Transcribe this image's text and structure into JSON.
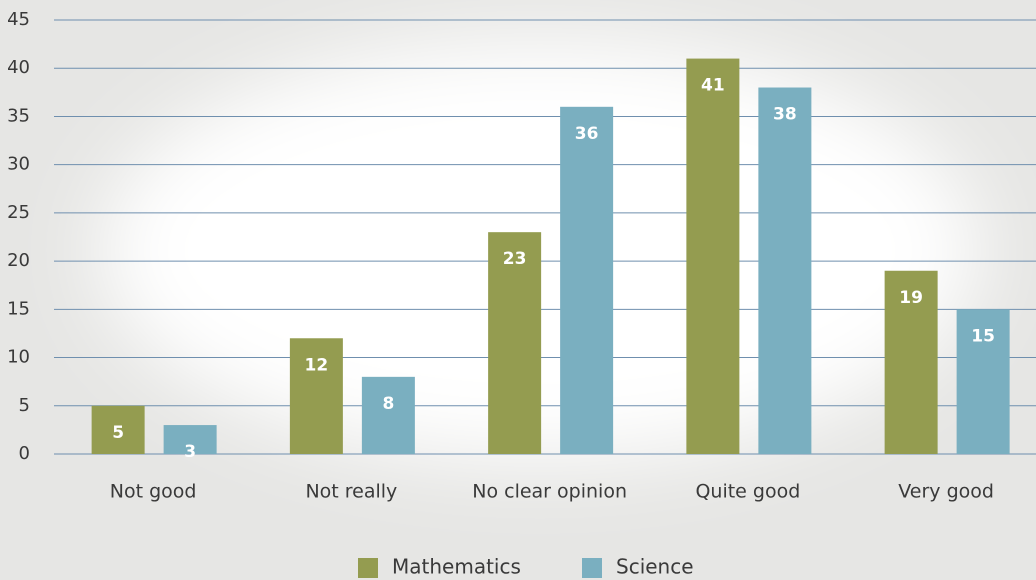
{
  "chart_data": {
    "type": "bar",
    "categories": [
      "Not good",
      "Not really",
      "No clear opinion",
      "Quite good",
      "Very good"
    ],
    "series": [
      {
        "name": "Mathematics",
        "color": "#949c50",
        "values": [
          5,
          12,
          23,
          41,
          19
        ]
      },
      {
        "name": "Science",
        "color": "#7aafc0",
        "values": [
          3,
          8,
          36,
          38,
          15
        ]
      }
    ],
    "ylim": [
      0,
      45
    ],
    "yticks": [
      0,
      5,
      10,
      15,
      20,
      25,
      30,
      35,
      40,
      45
    ],
    "grid": true,
    "legend": "bottom"
  }
}
